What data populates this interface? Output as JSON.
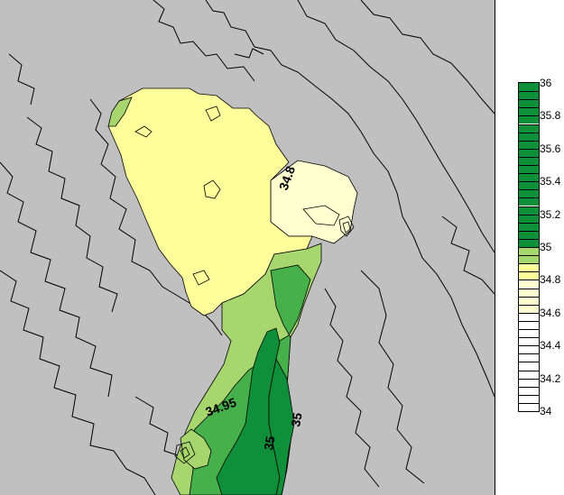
{
  "colorbar": {
    "min": 34,
    "max": 36,
    "step": 0.05,
    "tick_labels": [
      "36",
      "35.8",
      "35.6",
      "35.4",
      "35.2",
      "35",
      "34.8",
      "34.6",
      "34.4",
      "34.2",
      "34"
    ],
    "tick_values": [
      36,
      35.8,
      35.6,
      35.4,
      35.2,
      35,
      34.8,
      34.6,
      34.4,
      34.2,
      34
    ],
    "colors": {
      "dark_green": "#0f8f3a",
      "green": "#46b04a",
      "light_green": "#a7d66e",
      "yellow": "#fefe9b",
      "pale_yellow": "#ffffd0",
      "white": "#ffffff"
    }
  },
  "map": {
    "land_color": "#c0c0c0",
    "contour_labels": [
      "34.8",
      "34.95",
      "35",
      "35"
    ]
  }
}
